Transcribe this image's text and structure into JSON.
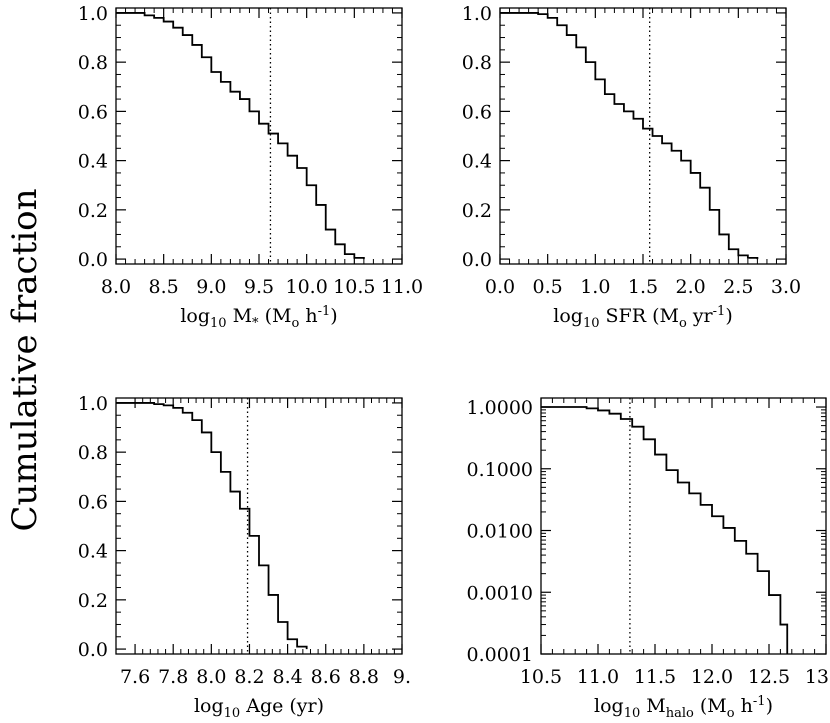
{
  "figure": {
    "ylabel": "Cumulative fraction"
  },
  "chart_data": [
    {
      "type": "line",
      "step": true,
      "xlabel": {
        "pre": "log",
        "sub": "10",
        "main": " M",
        "sub2": "*",
        "post": " (M",
        "sub3": "o",
        "post2": " h",
        "sup": "-1",
        "post3": ")"
      },
      "xlim": [
        8.0,
        11.0
      ],
      "ylim": [
        -0.02,
        1.02
      ],
      "yscale": "linear",
      "xticks": [
        8.0,
        8.5,
        9.0,
        9.5,
        10.0,
        10.5,
        11.0
      ],
      "xtick_labels": [
        "8.0",
        "8.5",
        "9.0",
        "9.5",
        "10.0",
        "10.5",
        "11.0"
      ],
      "yticks": [
        0.0,
        0.2,
        0.4,
        0.6,
        0.8,
        1.0
      ],
      "ytick_labels": [
        "0.0",
        "0.2",
        "0.4",
        "0.6",
        "0.8",
        "1.0"
      ],
      "vline": 9.62,
      "series": [
        {
          "x": [
            8.0,
            8.3,
            8.4,
            8.5,
            8.6,
            8.7,
            8.8,
            8.9,
            9.0,
            9.1,
            9.2,
            9.3,
            9.4,
            9.5,
            9.6,
            9.7,
            9.8,
            9.9,
            10.0,
            10.1,
            10.2,
            10.3,
            10.4,
            10.5,
            10.6
          ],
          "y": [
            1.0,
            0.99,
            0.98,
            0.965,
            0.94,
            0.91,
            0.87,
            0.82,
            0.76,
            0.72,
            0.68,
            0.65,
            0.6,
            0.55,
            0.51,
            0.47,
            0.42,
            0.37,
            0.3,
            0.22,
            0.12,
            0.06,
            0.02,
            0.005,
            0.0
          ]
        }
      ]
    },
    {
      "type": "line",
      "step": true,
      "xlabel": {
        "pre": "log",
        "sub": "10",
        "main": " SFR",
        "sub2": "",
        "post": " (M",
        "sub3": "o",
        "post2": " yr",
        "sup": "-1",
        "post3": ")"
      },
      "xlim": [
        0.0,
        3.0
      ],
      "ylim": [
        -0.02,
        1.02
      ],
      "yscale": "linear",
      "xticks": [
        0.0,
        0.5,
        1.0,
        1.5,
        2.0,
        2.5,
        3.0
      ],
      "xtick_labels": [
        "0.0",
        "0.5",
        "1.0",
        "1.5",
        "2.0",
        "2.5",
        "3.0"
      ],
      "yticks": [
        0.0,
        0.2,
        0.4,
        0.6,
        0.8,
        1.0
      ],
      "ytick_labels": [
        "0.0",
        "0.2",
        "0.4",
        "0.6",
        "0.8",
        "1.0"
      ],
      "vline": 1.57,
      "series": [
        {
          "x": [
            0.0,
            0.4,
            0.5,
            0.6,
            0.7,
            0.8,
            0.9,
            1.0,
            1.1,
            1.2,
            1.3,
            1.4,
            1.5,
            1.6,
            1.7,
            1.8,
            1.9,
            2.0,
            2.1,
            2.2,
            2.3,
            2.4,
            2.5,
            2.6,
            2.7
          ],
          "y": [
            1.0,
            0.995,
            0.98,
            0.95,
            0.91,
            0.86,
            0.8,
            0.73,
            0.67,
            0.63,
            0.6,
            0.57,
            0.53,
            0.5,
            0.47,
            0.44,
            0.4,
            0.35,
            0.29,
            0.2,
            0.1,
            0.04,
            0.015,
            0.005,
            0.0
          ]
        }
      ]
    },
    {
      "type": "line",
      "step": true,
      "xlabel": {
        "pre": "log",
        "sub": "10",
        "main": " Age (yr)",
        "sub2": "",
        "post": "",
        "sub3": "",
        "post2": "",
        "sup": "",
        "post3": ""
      },
      "xlim": [
        7.5,
        9.0
      ],
      "ylim": [
        -0.02,
        1.02
      ],
      "yscale": "linear",
      "xticks": [
        7.6,
        7.8,
        8.0,
        8.2,
        8.4,
        8.6,
        8.8,
        9.0
      ],
      "xtick_labels": [
        "7.6",
        "7.8",
        "8.0",
        "8.2",
        "8.4",
        "8.6",
        "8.8",
        "9."
      ],
      "yticks": [
        0.0,
        0.2,
        0.4,
        0.6,
        0.8,
        1.0
      ],
      "ytick_labels": [
        "0.0",
        "0.2",
        "0.4",
        "0.6",
        "0.8",
        "1.0"
      ],
      "vline": 8.19,
      "series": [
        {
          "x": [
            7.5,
            7.7,
            7.75,
            7.8,
            7.85,
            7.9,
            7.95,
            8.0,
            8.05,
            8.1,
            8.15,
            8.2,
            8.25,
            8.3,
            8.35,
            8.4,
            8.45,
            8.5
          ],
          "y": [
            1.0,
            0.995,
            0.99,
            0.98,
            0.96,
            0.93,
            0.88,
            0.8,
            0.72,
            0.64,
            0.57,
            0.46,
            0.34,
            0.22,
            0.11,
            0.04,
            0.01,
            0.0
          ]
        }
      ]
    },
    {
      "type": "line",
      "step": true,
      "xlabel": {
        "pre": "log",
        "sub": "10",
        "main": " M",
        "sub2": "halo",
        "post": " (M",
        "sub3": "o",
        "post2": " h",
        "sup": "-1",
        "post3": ")"
      },
      "xlim": [
        10.5,
        13.0
      ],
      "ylim": [
        0.0001,
        1.4
      ],
      "yscale": "log",
      "xticks": [
        10.5,
        11.0,
        11.5,
        12.0,
        12.5,
        13.0
      ],
      "xtick_labels": [
        "10.5",
        "11.0",
        "11.5",
        "12.0",
        "12.5",
        "13.0"
      ],
      "yticks": [
        0.0001,
        0.001,
        0.01,
        0.1,
        1.0
      ],
      "ytick_labels": [
        "0.0001",
        "0.0010",
        "0.0100",
        "0.1000",
        "1.0000"
      ],
      "vline": 11.28,
      "series": [
        {
          "x": [
            10.5,
            10.9,
            11.0,
            11.1,
            11.2,
            11.3,
            11.4,
            11.5,
            11.6,
            11.7,
            11.8,
            11.9,
            12.0,
            12.1,
            12.2,
            12.3,
            12.4,
            12.5,
            12.6,
            12.66
          ],
          "y": [
            1.0,
            0.95,
            0.88,
            0.78,
            0.64,
            0.48,
            0.3,
            0.17,
            0.095,
            0.06,
            0.04,
            0.026,
            0.017,
            0.011,
            0.0068,
            0.0042,
            0.0022,
            0.0009,
            0.0003,
            0.0001
          ]
        }
      ]
    }
  ]
}
